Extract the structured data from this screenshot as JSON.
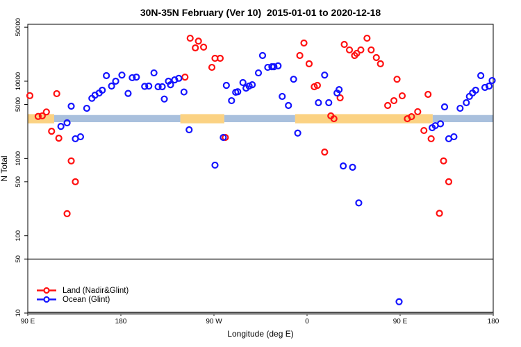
{
  "chart_data": {
    "type": "scatter",
    "title": "30N-35N February (Ver 10)  2015-01-01 to 2020-12-18",
    "xlabel": "Longitude (deg E)",
    "ylabel": "N Total",
    "x_axis": {
      "note": "longitude axis wraps eastward: 90E through 180, 90W, 0, back to 180",
      "range": [
        90,
        540
      ],
      "ticks": [
        90,
        180,
        270,
        360,
        450,
        540
      ],
      "tick_labels": [
        "90 E",
        "180",
        "90 W",
        "0",
        "90 E",
        "180"
      ]
    },
    "y_axis": {
      "scale": "log",
      "range": [
        10,
        50000
      ],
      "ticks": [
        10,
        50,
        100,
        500,
        1000,
        5000,
        10000,
        50000
      ],
      "tick_labels": [
        "10",
        "50",
        "100",
        "500",
        "1000",
        "5000",
        "10000",
        "50000"
      ]
    },
    "grid": false,
    "reference_lines": [
      {
        "n": 50,
        "color": "#000000",
        "width": 1
      },
      {
        "n": 10,
        "color": "#808080",
        "width": 3
      }
    ],
    "bands": [
      {
        "x0": 90,
        "x1": 115.5,
        "n0": 3750,
        "n1": 2850,
        "color": "#fbd283"
      },
      {
        "x0": 115.5,
        "x1": 237.5,
        "n0": 3650,
        "n1": 2950,
        "color": "#a9c0dd"
      },
      {
        "x0": 237.5,
        "x1": 280,
        "n0": 3750,
        "n1": 2850,
        "color": "#fbd283"
      },
      {
        "x0": 280,
        "x1": 348.5,
        "n0": 3650,
        "n1": 2950,
        "color": "#a9c0dd"
      },
      {
        "x0": 348.5,
        "x1": 481.5,
        "n0": 3750,
        "n1": 2850,
        "color": "#fbd283"
      },
      {
        "x0": 481.5,
        "x1": 540,
        "n0": 3650,
        "n1": 2950,
        "color": "#a9c0dd"
      }
    ],
    "legend": {
      "position": "bottom-left"
    },
    "series": [
      {
        "name": "Land (Nadir&Glint)",
        "color": "#ff1111",
        "marker": "open-circle",
        "points": [
          [
            92,
            6500
          ],
          [
            100,
            3500
          ],
          [
            104,
            3560
          ],
          [
            108,
            4000
          ],
          [
            113,
            2250
          ],
          [
            118,
            6900
          ],
          [
            120,
            1830
          ],
          [
            132,
            930
          ],
          [
            136,
            500
          ],
          [
            128,
            193
          ],
          [
            242,
            11300
          ],
          [
            247,
            36000
          ],
          [
            252,
            27000
          ],
          [
            255,
            33000
          ],
          [
            260,
            27600
          ],
          [
            268,
            15100
          ],
          [
            271,
            19800
          ],
          [
            276,
            19800
          ],
          [
            281,
            1870
          ],
          [
            353,
            21500
          ],
          [
            357,
            31200
          ],
          [
            362,
            16800
          ],
          [
            367,
            8480
          ],
          [
            370,
            8830
          ],
          [
            377,
            1210
          ],
          [
            383,
            3560
          ],
          [
            386,
            3270
          ],
          [
            392,
            6090
          ],
          [
            396,
            29900
          ],
          [
            401,
            25400
          ],
          [
            406,
            21500
          ],
          [
            408,
            22900
          ],
          [
            412,
            25400
          ],
          [
            418,
            36000
          ],
          [
            422,
            25400
          ],
          [
            427,
            20200
          ],
          [
            431,
            16800
          ],
          [
            438,
            4850
          ],
          [
            444,
            5600
          ],
          [
            447,
            10600
          ],
          [
            452,
            6470
          ],
          [
            457,
            3270
          ],
          [
            461,
            3480
          ],
          [
            467,
            4030
          ],
          [
            473,
            2300
          ],
          [
            477,
            6750
          ],
          [
            480,
            1800
          ],
          [
            488,
            195
          ],
          [
            492,
            930
          ],
          [
            497,
            500
          ]
        ]
      },
      {
        "name": "Ocean (Glint)",
        "color": "#1414ff",
        "marker": "open-circle",
        "points": [
          [
            122,
            2600
          ],
          [
            128,
            2890
          ],
          [
            132,
            4750
          ],
          [
            136,
            1800
          ],
          [
            141,
            1910
          ],
          [
            147,
            4460
          ],
          [
            152,
            6000
          ],
          [
            155,
            6600
          ],
          [
            159,
            7030
          ],
          [
            162,
            7640
          ],
          [
            166,
            11800
          ],
          [
            171,
            8650
          ],
          [
            175,
            10000
          ],
          [
            181,
            12000
          ],
          [
            187,
            6950
          ],
          [
            191,
            11100
          ],
          [
            195,
            11300
          ],
          [
            203,
            8560
          ],
          [
            207,
            8650
          ],
          [
            212,
            12800
          ],
          [
            216,
            8480
          ],
          [
            220,
            8480
          ],
          [
            222,
            5880
          ],
          [
            226,
            10000
          ],
          [
            228,
            9000
          ],
          [
            232,
            10400
          ],
          [
            236,
            10900
          ],
          [
            241,
            7250
          ],
          [
            246,
            2350
          ],
          [
            271,
            820
          ],
          [
            279,
            1870
          ],
          [
            282,
            8830
          ],
          [
            287,
            5600
          ],
          [
            291,
            7190
          ],
          [
            293,
            7300
          ],
          [
            298,
            9600
          ],
          [
            301,
            8130
          ],
          [
            304,
            8650
          ],
          [
            307,
            9000
          ],
          [
            313,
            12800
          ],
          [
            317,
            21500
          ],
          [
            322,
            15100
          ],
          [
            326,
            15400
          ],
          [
            328,
            15400
          ],
          [
            332,
            15800
          ],
          [
            336,
            6350
          ],
          [
            342,
            4850
          ],
          [
            347,
            10600
          ],
          [
            351,
            2130
          ],
          [
            371,
            5270
          ],
          [
            377,
            12000
          ],
          [
            381,
            5270
          ],
          [
            389,
            7030
          ],
          [
            391,
            7780
          ],
          [
            395,
            800
          ],
          [
            404,
            770
          ],
          [
            410,
            266
          ],
          [
            449,
            14
          ],
          [
            481,
            2500
          ],
          [
            484,
            2660
          ],
          [
            489,
            2810
          ],
          [
            493,
            4650
          ],
          [
            497,
            1800
          ],
          [
            502,
            1910
          ],
          [
            508,
            4460
          ],
          [
            514,
            5270
          ],
          [
            517,
            6350
          ],
          [
            520,
            7030
          ],
          [
            523,
            7640
          ],
          [
            528,
            11800
          ],
          [
            532,
            8300
          ],
          [
            536,
            8650
          ],
          [
            539,
            10200
          ]
        ]
      }
    ]
  }
}
